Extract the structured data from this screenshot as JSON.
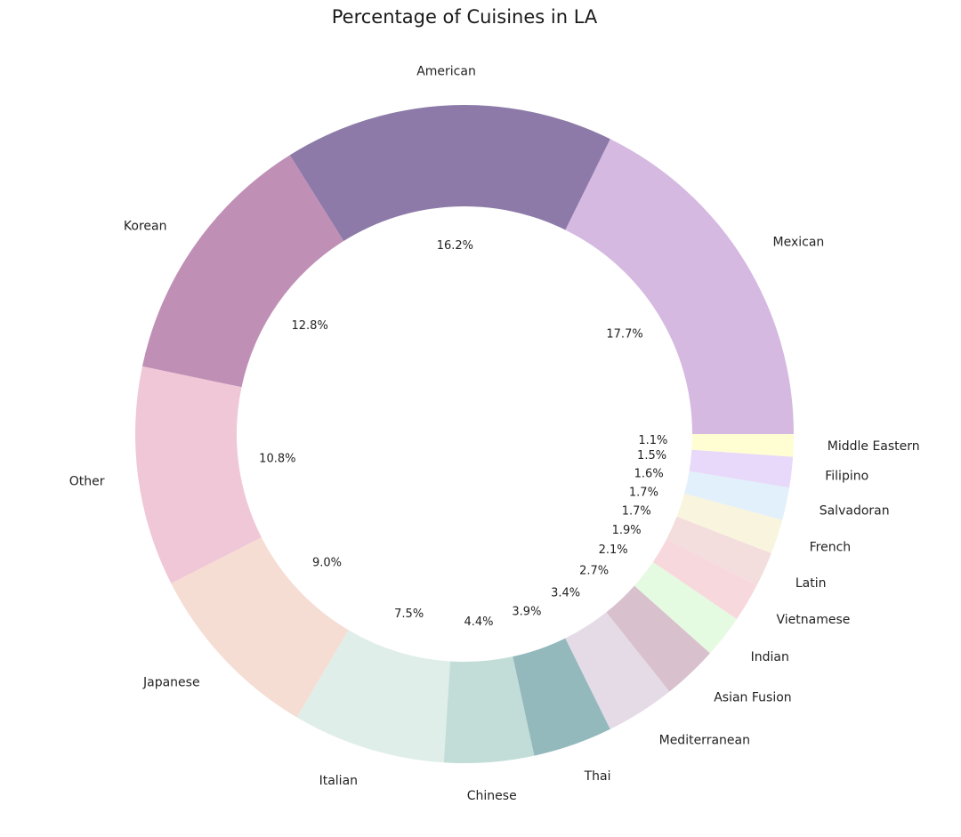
{
  "chart_data": {
    "type": "pie",
    "style": "donut",
    "title": "Percentage of Cuisines in LA",
    "direction": "counterclockwise",
    "start_angle_deg": 0,
    "slices": [
      {
        "label": "Mexican",
        "percent": 17.7,
        "pct_text": "17.7%",
        "color": "#d5b9e1"
      },
      {
        "label": "American",
        "percent": 16.2,
        "pct_text": "16.2%",
        "color": "#8d7aa8"
      },
      {
        "label": "Korean",
        "percent": 12.8,
        "pct_text": "12.8%",
        "color": "#c08fb6"
      },
      {
        "label": "Other",
        "percent": 10.8,
        "pct_text": "10.8%",
        "color": "#f0c7d7"
      },
      {
        "label": "Japanese",
        "percent": 9.0,
        "pct_text": "9.0%",
        "color": "#f6ddd3"
      },
      {
        "label": "Italian",
        "percent": 7.5,
        "pct_text": "7.5%",
        "color": "#dfeee9"
      },
      {
        "label": "Chinese",
        "percent": 4.4,
        "pct_text": "4.4%",
        "color": "#c2ddd8"
      },
      {
        "label": "Thai",
        "percent": 3.9,
        "pct_text": "3.9%",
        "color": "#93b9bd"
      },
      {
        "label": "Mediterranean",
        "percent": 3.4,
        "pct_text": "3.4%",
        "color": "#e4dbe6"
      },
      {
        "label": "Asian Fusion",
        "percent": 2.7,
        "pct_text": "2.7%",
        "color": "#d9c0cd"
      },
      {
        "label": "Indian",
        "percent": 2.1,
        "pct_text": "2.1%",
        "color": "#e5fbe1"
      },
      {
        "label": "Vietnamese",
        "percent": 1.9,
        "pct_text": "1.9%",
        "color": "#f7d9dd"
      },
      {
        "label": "Latin",
        "percent": 1.7,
        "pct_text": "1.7%",
        "color": "#f3dddd"
      },
      {
        "label": "French",
        "percent": 1.7,
        "pct_text": "1.7%",
        "color": "#f9f4de"
      },
      {
        "label": "Salvadoran",
        "percent": 1.6,
        "pct_text": "1.6%",
        "color": "#e1f0fb"
      },
      {
        "label": "Filipino",
        "percent": 1.5,
        "pct_text": "1.5%",
        "color": "#e8d8f9"
      },
      {
        "label": "Middle Eastern",
        "percent": 1.1,
        "pct_text": "1.1%",
        "color": "#fefed2"
      }
    ]
  }
}
